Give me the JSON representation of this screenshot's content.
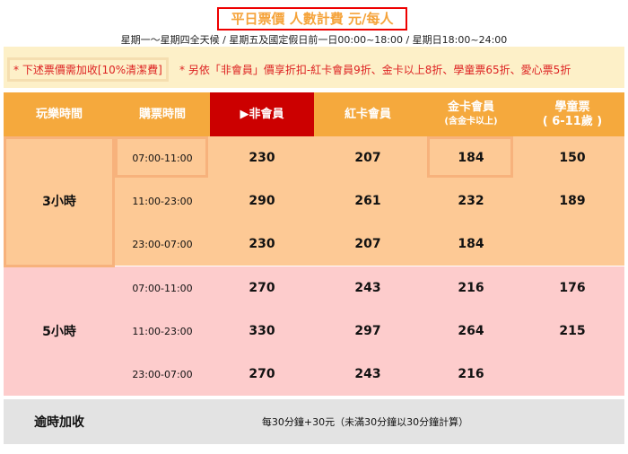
{
  "title": "平日票價 人數計費 元/每人",
  "subtitle": "星期一～星期四全天候 / 星期五及國定假日前一日00:00~18:00 / 星期日18:00~24:00",
  "notice": {
    "surcharge": "* 下述票價需加收[10%清潔費]",
    "discount": "* 另依「非會員」價享折扣-紅卡會員9折、金卡以上8折、學童票65折、愛心票5折"
  },
  "header": {
    "play_time": "玩樂時間",
    "purchase_time": "購票時間",
    "non_member": "▶非會員",
    "red_card": "紅卡會員",
    "gold_card": "金卡會員",
    "gold_card_note": "(含金卡以上)",
    "student": "學童票",
    "student_note": "( 6-11歲 )"
  },
  "colors": {
    "header": "#f5a93d",
    "highlight": "#cc0000",
    "group1": "#fdc995",
    "group2": "#fdcccc",
    "footer": "#e3e3e3"
  },
  "groups": [
    {
      "label": "3小時",
      "rows": [
        {
          "time": "07:00-11:00",
          "non_member": "230",
          "red": "207",
          "gold": "184",
          "student": "150"
        },
        {
          "time": "11:00-23:00",
          "non_member": "290",
          "red": "261",
          "gold": "232",
          "student": "189"
        },
        {
          "time": "23:00-07:00",
          "non_member": "230",
          "red": "207",
          "gold": "184",
          "student": ""
        }
      ]
    },
    {
      "label": "5小時",
      "rows": [
        {
          "time": "07:00-11:00",
          "non_member": "270",
          "red": "243",
          "gold": "216",
          "student": "176"
        },
        {
          "time": "11:00-23:00",
          "non_member": "330",
          "red": "297",
          "gold": "264",
          "student": "215"
        },
        {
          "time": "23:00-07:00",
          "non_member": "270",
          "red": "243",
          "gold": "216",
          "student": ""
        }
      ]
    }
  ],
  "footer": {
    "label": "逾時加收",
    "text": "每30分鐘+30元（未滿30分鐘以30分鐘計算）"
  }
}
